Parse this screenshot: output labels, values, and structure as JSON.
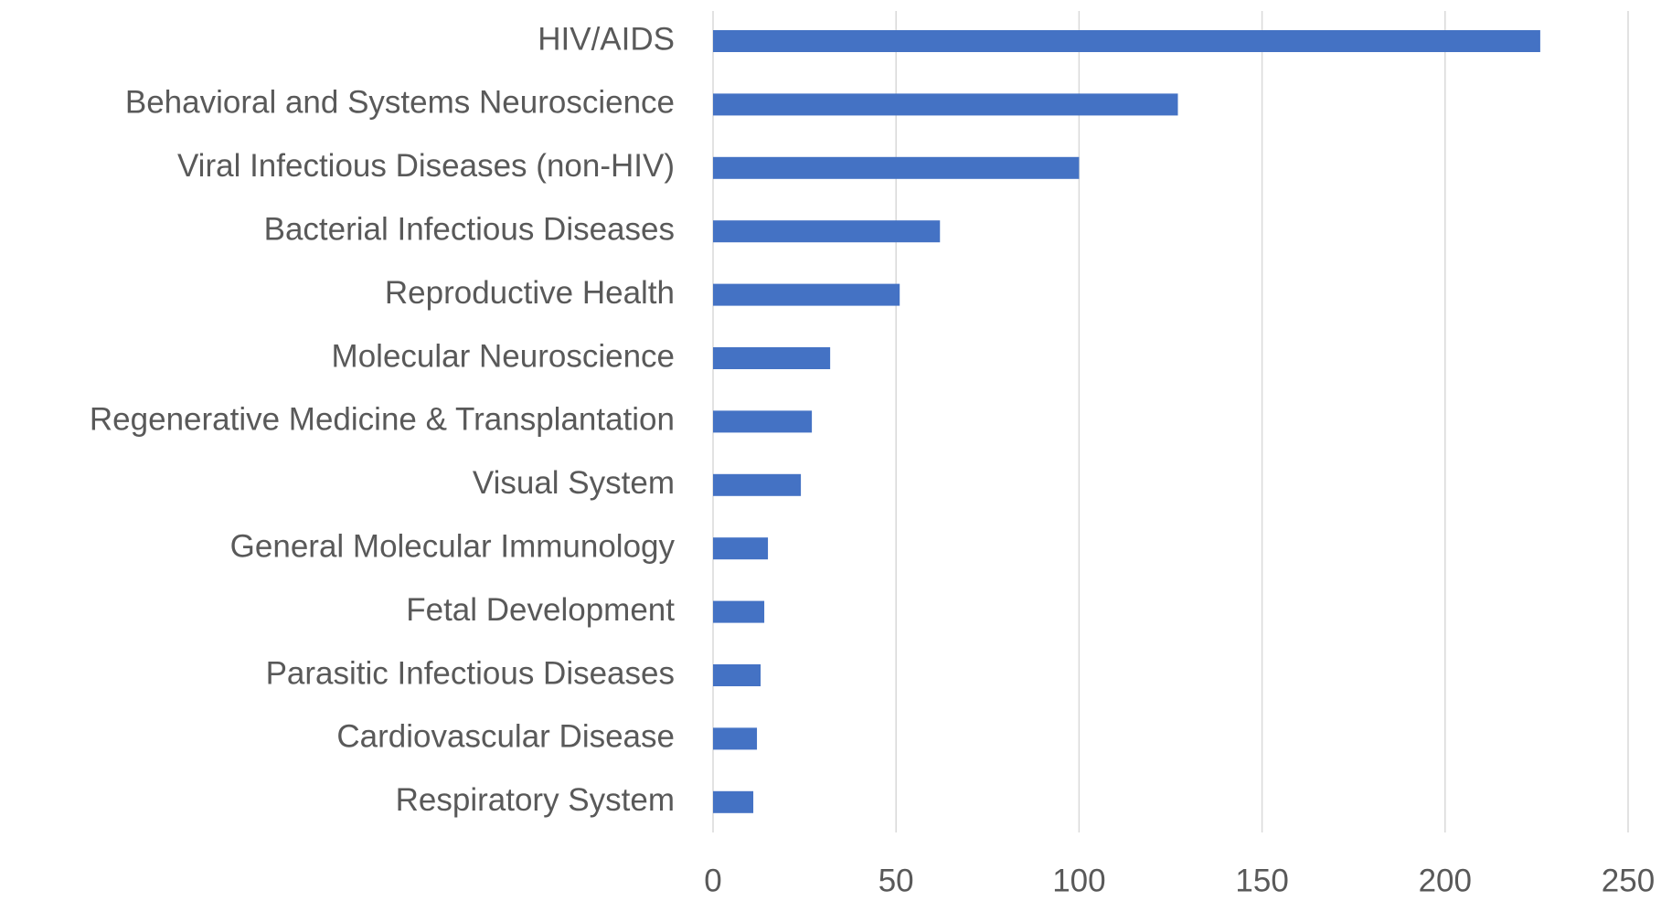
{
  "chart_data": {
    "type": "bar",
    "orientation": "horizontal",
    "categories": [
      "HIV/AIDS",
      "Behavioral and Systems Neuroscience",
      "Viral Infectious Diseases (non-HIV)",
      "Bacterial Infectious Diseases",
      "Reproductive Health",
      "Molecular Neuroscience",
      "Regenerative Medicine & Transplantation",
      "Visual System",
      "General Molecular Immunology",
      "Fetal Development",
      "Parasitic Infectious Diseases",
      "Cardiovascular Disease",
      "Respiratory System"
    ],
    "values": [
      226,
      127,
      100,
      62,
      51,
      32,
      27,
      24,
      15,
      14,
      13,
      12,
      11
    ],
    "color": "#4472c4",
    "xlim": [
      0,
      250
    ],
    "xticks": [
      0,
      50,
      100,
      150,
      200,
      250
    ],
    "grid": true
  }
}
